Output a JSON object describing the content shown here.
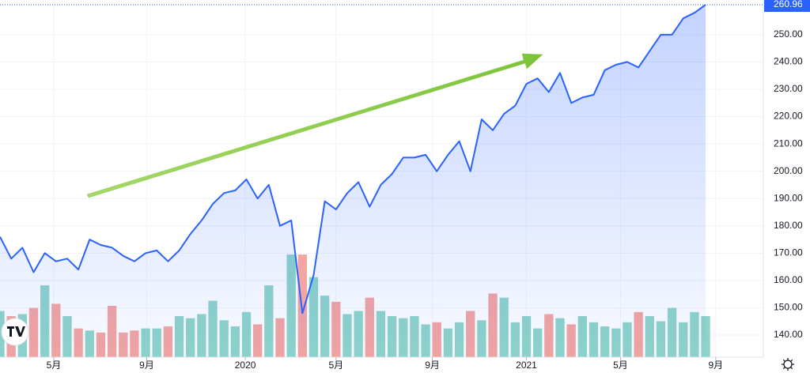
{
  "chart_data": {
    "type": "line",
    "x": [
      0,
      1,
      2,
      3,
      4,
      5,
      6,
      7,
      8,
      9,
      10,
      11,
      12,
      13,
      14,
      15,
      16,
      17,
      18,
      19,
      20,
      21,
      22,
      23,
      24,
      25,
      26,
      27,
      28,
      29,
      30,
      31,
      32,
      33,
      34,
      35,
      36,
      37,
      38,
      39,
      40,
      41,
      42,
      43,
      44,
      45,
      46,
      47,
      48,
      49,
      50,
      51,
      52,
      53,
      54,
      55,
      56,
      57,
      58,
      59,
      60,
      61,
      62,
      63
    ],
    "xlim": [
      0,
      68.15
    ],
    "xticks": [
      {
        "value": 4.8,
        "label": "5月"
      },
      {
        "value": 13.1,
        "label": "9月"
      },
      {
        "value": 21.9,
        "label": "2020"
      },
      {
        "value": 30.0,
        "label": "5月"
      },
      {
        "value": 38.6,
        "label": "9月"
      },
      {
        "value": 47.0,
        "label": "2021"
      },
      {
        "value": 55.4,
        "label": "5月"
      },
      {
        "value": 63.9,
        "label": "9月"
      }
    ],
    "ylim": [
      131.9,
      262.7
    ],
    "yticks": [
      {
        "value": 140,
        "label": "140.00"
      },
      {
        "value": 150,
        "label": "150.00"
      },
      {
        "value": 160,
        "label": "160.00"
      },
      {
        "value": 170,
        "label": "170.00"
      },
      {
        "value": 180,
        "label": "180.00"
      },
      {
        "value": 190,
        "label": "190.00"
      },
      {
        "value": 200,
        "label": "200.00"
      },
      {
        "value": 210,
        "label": "210.00"
      },
      {
        "value": 220,
        "label": "220.00"
      },
      {
        "value": 230,
        "label": "230.00"
      },
      {
        "value": 240,
        "label": "240.00"
      },
      {
        "value": 250,
        "label": "250.00"
      }
    ],
    "y2lim": [
      0,
      348
    ],
    "grid": true,
    "series": [
      {
        "color": "#2962ff",
        "values": [
          176,
          168,
          172,
          163,
          170,
          167,
          168,
          164,
          175,
          173,
          172,
          169,
          167,
          170,
          171,
          167,
          171,
          177,
          182,
          188,
          192,
          193,
          197,
          190,
          195,
          180,
          182,
          148,
          162,
          189,
          186,
          192,
          196,
          187,
          195,
          199,
          205,
          205,
          206,
          200,
          206,
          211,
          200,
          219,
          215,
          221,
          224,
          232,
          234,
          229,
          236,
          225,
          227,
          228,
          237,
          239,
          240,
          238,
          244,
          250,
          250,
          256,
          258,
          260.96
        ]
      },
      {
        "type": "bar",
        "axis": "y2",
        "up_color": "#8fd4c9",
        "down_color": "#f4a5a0",
        "values": [
          45,
          40,
          42,
          48,
          70,
          52,
          40,
          28,
          26,
          24,
          50,
          24,
          26,
          28,
          28,
          30,
          40,
          38,
          42,
          55,
          36,
          30,
          44,
          32,
          70,
          38,
          100,
          100,
          78,
          60,
          54,
          42,
          45,
          58,
          45,
          40,
          38,
          40,
          32,
          34,
          28,
          34,
          45,
          36,
          62,
          58,
          34,
          40,
          28,
          42,
          38,
          32,
          40,
          34,
          30,
          28,
          34,
          44,
          40,
          35,
          48,
          34,
          44,
          40
        ]
      }
    ]
  }
}
